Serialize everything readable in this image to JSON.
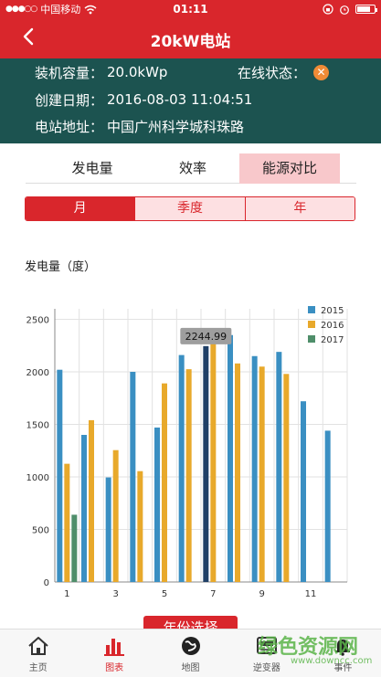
{
  "status": {
    "carrier": "中国移动",
    "time": "01:11"
  },
  "nav": {
    "back_icon": "chevron-left-icon",
    "title": "20kW电站"
  },
  "info": {
    "capacity_label": "装机容量：",
    "capacity_value": "20.0kWp",
    "online_label": "在线状态：",
    "online_icon": "close-circle-icon",
    "created_label": "创建日期：",
    "created_value": "2016-08-03 11:04:51",
    "address_label": "电站地址：",
    "address_value": "中国广州科学城科珠路"
  },
  "tabs": [
    "发电量",
    "效率",
    "能源对比"
  ],
  "active_tab": "能源对比",
  "periods": [
    "月",
    "季度",
    "年"
  ],
  "active_period": "月",
  "section_title": "发电量（度）",
  "chart_data": {
    "type": "bar",
    "x": [
      1,
      2,
      3,
      4,
      5,
      6,
      7,
      8,
      9,
      10,
      11,
      12
    ],
    "x_tick_labels": [
      "1",
      "3",
      "5",
      "7",
      "9",
      "11"
    ],
    "series": [
      {
        "name": "2015",
        "color": "#3a8fc2",
        "values": [
          2020,
          1400,
          995,
          2000,
          1470,
          2160,
          2244.99,
          2350,
          2150,
          2190,
          1720,
          1440
        ]
      },
      {
        "name": "2016",
        "color": "#e8a92b",
        "values": [
          1125,
          1540,
          1255,
          1055,
          1890,
          2025,
          2310,
          2080,
          2050,
          1980,
          null,
          null
        ]
      },
      {
        "name": "2017",
        "color": "#4f8e6a",
        "values": [
          640,
          null,
          null,
          null,
          null,
          null,
          null,
          null,
          null,
          null,
          null,
          null
        ]
      }
    ],
    "ylim": [
      0,
      2600
    ],
    "y_ticks": [
      0,
      500,
      1000,
      1500,
      2000,
      2500
    ],
    "grid": true,
    "legend": "top-right",
    "highlight": {
      "series": "2015",
      "x": 7,
      "label": "2244.99",
      "color": "#1f3f66"
    }
  },
  "year_button": "年份选择",
  "tabbar": [
    {
      "label": "主页",
      "icon": "home-icon"
    },
    {
      "label": "图表",
      "icon": "bar-chart-icon"
    },
    {
      "label": "地图",
      "icon": "globe-icon"
    },
    {
      "label": "逆变器",
      "icon": "inverter-icon"
    },
    {
      "label": "事件",
      "icon": "bell-icon"
    }
  ],
  "active_tabbar": "图表",
  "watermark": {
    "title": "绿色资源网",
    "url": "www.downcc.com"
  },
  "colors": {
    "brand_red": "#d9262c",
    "info_bg": "#1c5350",
    "tab_active_bg": "#f8c8cb"
  }
}
